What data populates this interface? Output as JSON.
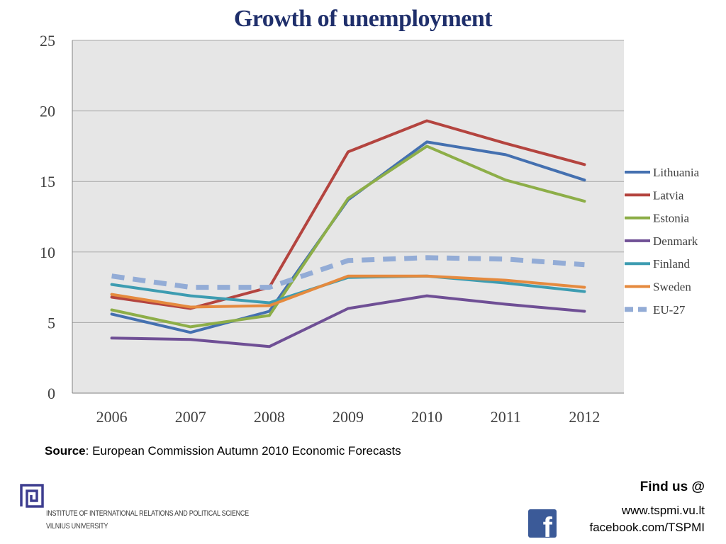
{
  "slide": {
    "title": "Growth of unemployment",
    "source_label": "Source",
    "source_text": ": European Commission  Autumn 2010 Economic Forecasts",
    "find_us": "Find us @",
    "website": "www.tspmi.vu.lt",
    "facebook": "facebook.com/TSPMI",
    "facebook_icon_letter": "f",
    "facebook_icon": "facebook-icon",
    "institute_line1": "INSTITUTE OF INTERNATIONAL RELATIONS AND POLITICAL SCIENCE",
    "institute_line2": "VILNIUS UNIVERSITY",
    "logo_icon": "greek-key-logo",
    "logo_color": "#3d3d8f"
  },
  "chart_data": {
    "type": "line",
    "title": "Growth of unemployment",
    "xlabel": "",
    "ylabel": "",
    "categories": [
      "2006",
      "2007",
      "2008",
      "2009",
      "2010",
      "2011",
      "2012"
    ],
    "ylim": [
      0,
      25
    ],
    "yticks": [
      "0",
      "5",
      "10",
      "15",
      "20",
      "25"
    ],
    "grid": true,
    "plot_background": "#e6e6e6",
    "legend_position": "right",
    "series": [
      {
        "name": "Lithuania",
        "color": "#4470b0",
        "dashed": false,
        "values": [
          5.6,
          4.3,
          5.8,
          13.7,
          17.8,
          16.9,
          15.1
        ]
      },
      {
        "name": "Latvia",
        "color": "#b4443f",
        "dashed": false,
        "values": [
          6.8,
          6.0,
          7.5,
          17.1,
          19.3,
          17.7,
          16.2
        ]
      },
      {
        "name": "Estonia",
        "color": "#8dae48",
        "dashed": false,
        "values": [
          5.9,
          4.7,
          5.5,
          13.8,
          17.5,
          15.1,
          13.6
        ]
      },
      {
        "name": "Denmark",
        "color": "#6f4f95",
        "dashed": false,
        "values": [
          3.9,
          3.8,
          3.3,
          6.0,
          6.9,
          6.3,
          5.8
        ]
      },
      {
        "name": "Finland",
        "color": "#3d9cb1",
        "dashed": false,
        "values": [
          7.7,
          6.9,
          6.4,
          8.2,
          8.3,
          7.8,
          7.2
        ]
      },
      {
        "name": "Sweden",
        "color": "#e58a3e",
        "dashed": false,
        "values": [
          7.0,
          6.1,
          6.2,
          8.3,
          8.3,
          8.0,
          7.5
        ]
      },
      {
        "name": "EU-27",
        "color": "#93acd6",
        "dashed": true,
        "values": [
          8.3,
          7.5,
          7.5,
          9.4,
          9.6,
          9.5,
          9.1
        ]
      }
    ]
  }
}
